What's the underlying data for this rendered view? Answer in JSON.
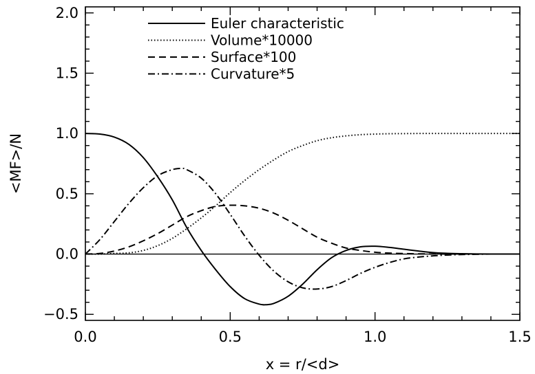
{
  "chart_data": {
    "type": "line",
    "title": "",
    "xlabel": "x = r/<d>",
    "ylabel": "<MF>/N",
    "xlim": [
      0.0,
      1.5
    ],
    "ylim": [
      -0.55,
      2.05
    ],
    "x_major_ticks": [
      0.0,
      0.5,
      1.0,
      1.5
    ],
    "x_tick_labels": [
      "0.0",
      "0.5",
      "1.0",
      "1.5"
    ],
    "y_major_ticks": [
      -0.5,
      0.0,
      0.5,
      1.0,
      1.5,
      2.0
    ],
    "y_tick_labels": [
      "−0.5",
      "0.0",
      "0.5",
      "1.0",
      "1.5",
      "2.0"
    ],
    "grid": false,
    "legend_position": "top-center",
    "zero_line": true,
    "series": [
      {
        "name": "Euler characteristic",
        "dash": "solid",
        "x": [
          0.0,
          0.05,
          0.1,
          0.15,
          0.2,
          0.25,
          0.3,
          0.35,
          0.4,
          0.45,
          0.5,
          0.55,
          0.6,
          0.625,
          0.65,
          0.7,
          0.75,
          0.8,
          0.85,
          0.9,
          0.95,
          1.0,
          1.05,
          1.1,
          1.15,
          1.2,
          1.25,
          1.3,
          1.35,
          1.4,
          1.45,
          1.5
        ],
        "values": [
          1.0,
          0.995,
          0.97,
          0.91,
          0.8,
          0.64,
          0.45,
          0.22,
          0.03,
          -0.13,
          -0.27,
          -0.37,
          -0.415,
          -0.42,
          -0.41,
          -0.35,
          -0.25,
          -0.13,
          -0.03,
          0.03,
          0.06,
          0.065,
          0.055,
          0.04,
          0.025,
          0.012,
          0.006,
          0.003,
          0.001,
          0.0,
          0.0,
          0.0
        ]
      },
      {
        "name": "Volume*10000",
        "dash": "dotted",
        "x": [
          0.0,
          0.05,
          0.1,
          0.15,
          0.2,
          0.25,
          0.3,
          0.35,
          0.4,
          0.45,
          0.5,
          0.55,
          0.6,
          0.65,
          0.7,
          0.75,
          0.8,
          0.85,
          0.9,
          0.95,
          1.0,
          1.05,
          1.1,
          1.15,
          1.2,
          1.25,
          1.3,
          1.35,
          1.4,
          1.45,
          1.5
        ],
        "values": [
          0.0,
          0.0,
          0.005,
          0.01,
          0.03,
          0.07,
          0.13,
          0.21,
          0.3,
          0.4,
          0.51,
          0.61,
          0.7,
          0.78,
          0.85,
          0.9,
          0.94,
          0.965,
          0.98,
          0.99,
          0.995,
          0.998,
          0.999,
          1.0,
          1.0,
          1.0,
          1.0,
          1.0,
          1.0,
          1.0,
          1.0
        ]
      },
      {
        "name": "Surface*100",
        "dash": "dashed",
        "x": [
          0.0,
          0.05,
          0.1,
          0.15,
          0.2,
          0.25,
          0.3,
          0.35,
          0.4,
          0.45,
          0.5,
          0.55,
          0.6,
          0.65,
          0.7,
          0.75,
          0.8,
          0.85,
          0.9,
          0.95,
          1.0,
          1.05,
          1.1,
          1.15,
          1.2,
          1.25,
          1.3,
          1.35,
          1.4,
          1.45,
          1.5
        ],
        "values": [
          0.0,
          0.005,
          0.025,
          0.06,
          0.11,
          0.17,
          0.24,
          0.31,
          0.36,
          0.395,
          0.405,
          0.4,
          0.38,
          0.34,
          0.28,
          0.21,
          0.14,
          0.09,
          0.05,
          0.03,
          0.015,
          0.008,
          0.004,
          0.002,
          0.001,
          0.0,
          0.0,
          0.0,
          0.0,
          0.0,
          0.0
        ]
      },
      {
        "name": "Curvature*5",
        "dash": "dashdot",
        "x": [
          0.0,
          0.05,
          0.1,
          0.15,
          0.2,
          0.25,
          0.3,
          0.333,
          0.35,
          0.4,
          0.45,
          0.5,
          0.55,
          0.6,
          0.65,
          0.7,
          0.75,
          0.8,
          0.85,
          0.9,
          0.95,
          1.0,
          1.05,
          1.1,
          1.15,
          1.2,
          1.25,
          1.3,
          1.35,
          1.4,
          1.45,
          1.5
        ],
        "values": [
          0.0,
          0.12,
          0.27,
          0.42,
          0.55,
          0.65,
          0.7,
          0.71,
          0.7,
          0.63,
          0.5,
          0.33,
          0.15,
          -0.01,
          -0.14,
          -0.23,
          -0.28,
          -0.29,
          -0.27,
          -0.22,
          -0.16,
          -0.11,
          -0.07,
          -0.04,
          -0.025,
          -0.015,
          -0.008,
          -0.004,
          -0.002,
          0.0,
          0.0,
          0.0
        ]
      }
    ]
  }
}
